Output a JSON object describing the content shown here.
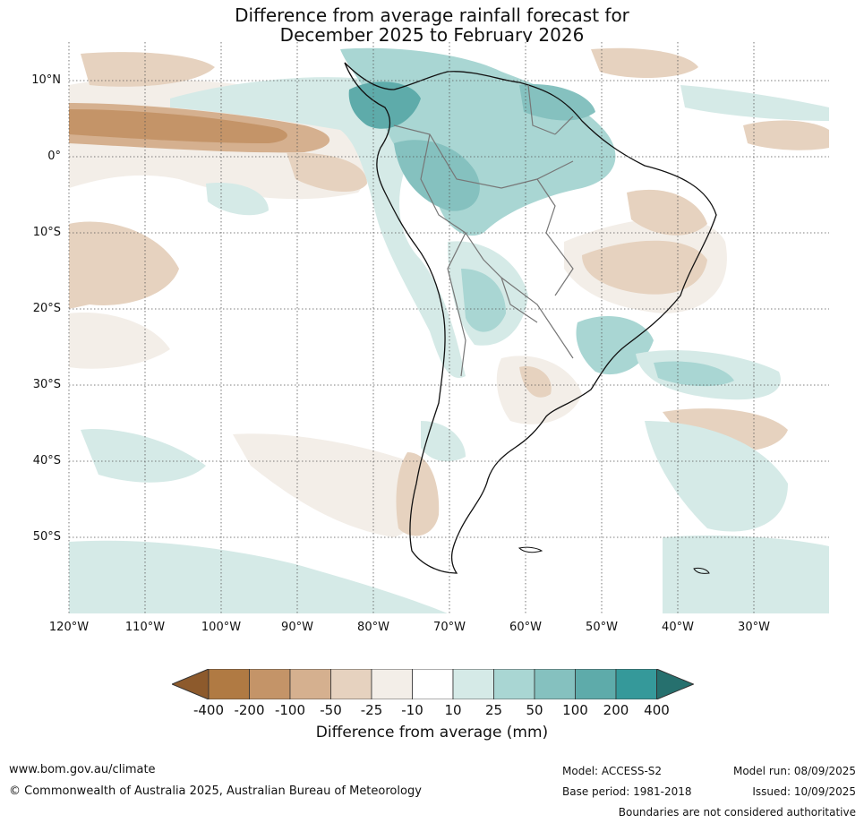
{
  "title": {
    "line1": "Difference from average rainfall forecast for",
    "line2": "December 2025 to February 2026"
  },
  "map": {
    "region": "South America",
    "lat_labels": [
      "10°N",
      "0°",
      "10°S",
      "20°S",
      "30°S",
      "40°S",
      "50°S"
    ],
    "lon_labels": [
      "120°W",
      "110°W",
      "100°W",
      "90°W",
      "80°W",
      "70°W",
      "60°W",
      "50°W",
      "40°W",
      "30°W"
    ],
    "gridlines": true
  },
  "colorbar": {
    "label": "Difference from average (mm)",
    "ticks": [
      "-400",
      "-200",
      "-100",
      "-50",
      "-25",
      "-10",
      "10",
      "25",
      "50",
      "100",
      "200",
      "400"
    ],
    "colors": [
      "#8d5a2c",
      "#b07a43",
      "#c49468",
      "#d5b08f",
      "#e6d2bf",
      "#f3eee8",
      "#ffffff",
      "#d5eae7",
      "#a9d6d3",
      "#85c1bf",
      "#5eabaa",
      "#35999a",
      "#26706e"
    ]
  },
  "footer": {
    "url": "www.bom.gov.au/climate",
    "copyright": "© Commonwealth of Australia 2025, Australian Bureau of Meteorology",
    "model": "Model: ACCESS-S2",
    "base_period": "Base period: 1981-2018",
    "model_run": "Model run: 08/09/2025",
    "issued": "Issued: 10/09/2025",
    "disclaimer": "Boundaries are not considered authoritative"
  }
}
